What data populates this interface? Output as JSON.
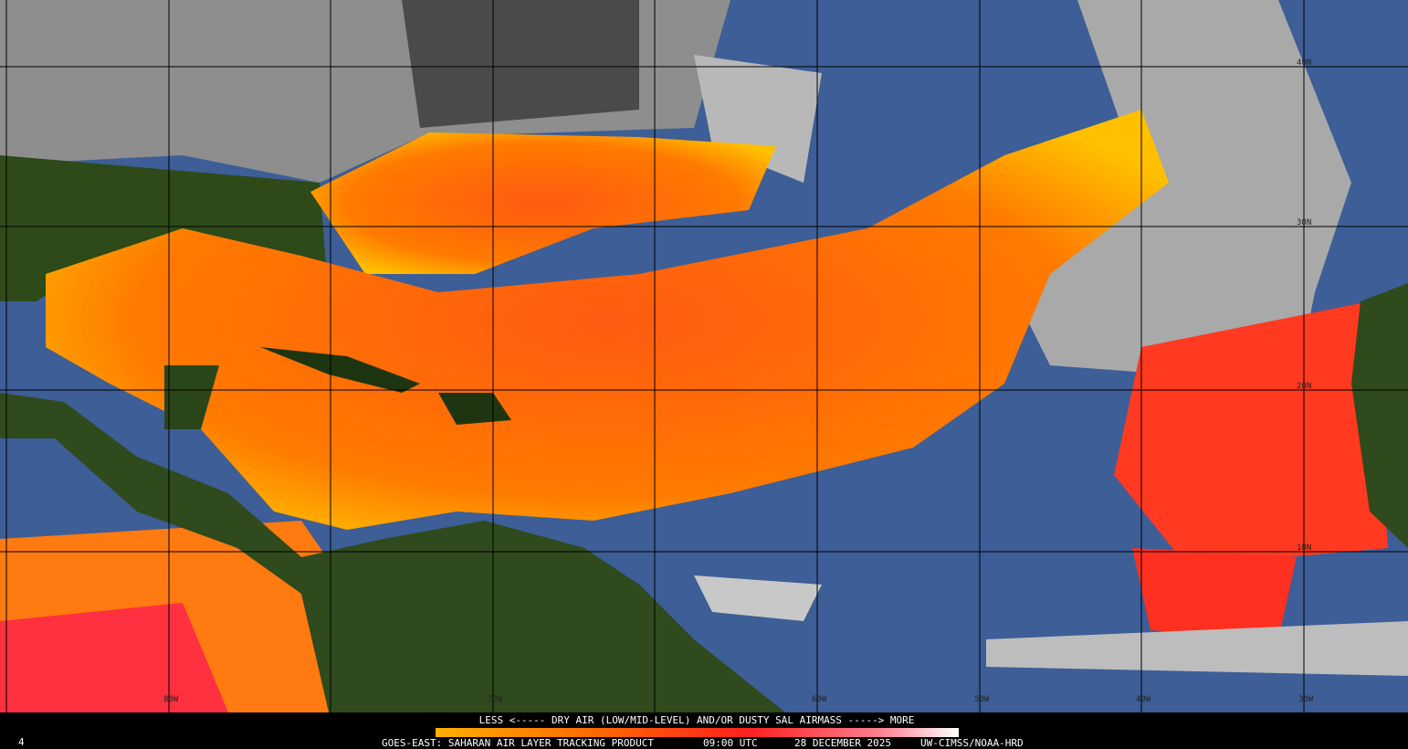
{
  "colorbar": {
    "label": "LESS <----- DRY AIR (LOW/MID-LEVEL) AND/OR DUSTY SAL AIRMASS -----> MORE"
  },
  "footer": {
    "frame": "4",
    "product": "GOES-EAST: SAHARAN AIR LAYER TRACKING PRODUCT",
    "time": "09:00 UTC",
    "date": "28 DECEMBER 2025",
    "credit": "UW-CIMSS/NOAA-HRD"
  },
  "grid_labels": {
    "longitude": [
      "80W",
      "70W",
      "60W",
      "50W",
      "40W",
      "30W"
    ],
    "latitude": [
      "40N",
      "30N",
      "20N",
      "10N"
    ]
  }
}
